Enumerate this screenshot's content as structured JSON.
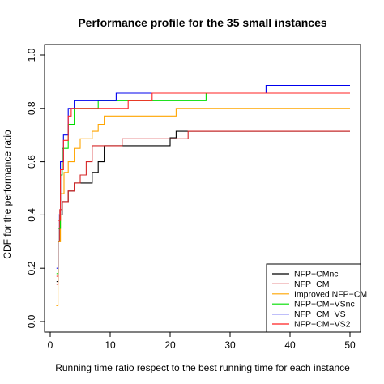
{
  "chart_data": {
    "type": "line",
    "step": true,
    "title": "Performance profile for the 35 small instances",
    "xlabel": "Running time ratio respect to the best running time for each instance",
    "ylabel": "CDF for the performance ratio",
    "xlim": [
      0,
      50
    ],
    "ylim": [
      0,
      1.0
    ],
    "xticks": [
      0,
      10,
      20,
      30,
      40,
      50
    ],
    "yticks": [
      0.0,
      0.2,
      0.4,
      0.6,
      0.8,
      1.0
    ],
    "ytick_labels": [
      "0.0",
      "0.2",
      "0.4",
      "0.6",
      "0.8",
      "1.0"
    ],
    "grid": false,
    "legend_position": "bottom-right",
    "series": [
      {
        "name": "NFP−CMnc",
        "color": "#000000",
        "points": [
          [
            1.05,
            0.15
          ],
          [
            1.3,
            0.3
          ],
          [
            1.6,
            0.4
          ],
          [
            2,
            0.45
          ],
          [
            3,
            0.49
          ],
          [
            4,
            0.52
          ],
          [
            5,
            0.52
          ],
          [
            6.5,
            0.52
          ],
          [
            7,
            0.56
          ],
          [
            8,
            0.6
          ],
          [
            9,
            0.66
          ],
          [
            15,
            0.66
          ],
          [
            19,
            0.66
          ],
          [
            20,
            0.69
          ],
          [
            21,
            0.714
          ],
          [
            25,
            0.714
          ],
          [
            50,
            0.714
          ]
        ]
      },
      {
        "name": "NFP−CM",
        "color": "#d62728",
        "points": [
          [
            1.05,
            0.14
          ],
          [
            1.3,
            0.3
          ],
          [
            1.6,
            0.42
          ],
          [
            2,
            0.45
          ],
          [
            3,
            0.49
          ],
          [
            4,
            0.52
          ],
          [
            5,
            0.55
          ],
          [
            6,
            0.6
          ],
          [
            7,
            0.66
          ],
          [
            11,
            0.66
          ],
          [
            12,
            0.686
          ],
          [
            22,
            0.686
          ],
          [
            23,
            0.714
          ],
          [
            50,
            0.714
          ]
        ]
      },
      {
        "name": "Improved NFP−CM",
        "color": "#ffa500",
        "points": [
          [
            1.0,
            0.06
          ],
          [
            1.3,
            0.3
          ],
          [
            1.7,
            0.48
          ],
          [
            2.3,
            0.56
          ],
          [
            3,
            0.6
          ],
          [
            4,
            0.65
          ],
          [
            5,
            0.686
          ],
          [
            7,
            0.714
          ],
          [
            8,
            0.74
          ],
          [
            9,
            0.771
          ],
          [
            20,
            0.771
          ],
          [
            21,
            0.8
          ],
          [
            50,
            0.8
          ]
        ]
      },
      {
        "name": "NFP−CM−VSnc",
        "color": "#00dd00",
        "points": [
          [
            1.05,
            0.18
          ],
          [
            1.3,
            0.35
          ],
          [
            1.7,
            0.55
          ],
          [
            2,
            0.65
          ],
          [
            3,
            0.74
          ],
          [
            4,
            0.8
          ],
          [
            7,
            0.8
          ],
          [
            8,
            0.829
          ],
          [
            25,
            0.829
          ],
          [
            26,
            0.857
          ],
          [
            50,
            0.857
          ]
        ]
      },
      {
        "name": "NFP−CM−VS",
        "color": "#0000ee",
        "points": [
          [
            1.05,
            0.2
          ],
          [
            1.3,
            0.4
          ],
          [
            1.7,
            0.6
          ],
          [
            2.2,
            0.7
          ],
          [
            3,
            0.8
          ],
          [
            4,
            0.829
          ],
          [
            10,
            0.829
          ],
          [
            11,
            0.857
          ],
          [
            35,
            0.857
          ],
          [
            36,
            0.886
          ],
          [
            50,
            0.886
          ]
        ]
      },
      {
        "name": "NFP−CM−VS2",
        "color": "#ff2222",
        "points": [
          [
            1.05,
            0.17
          ],
          [
            1.3,
            0.38
          ],
          [
            1.7,
            0.57
          ],
          [
            2.2,
            0.68
          ],
          [
            3,
            0.771
          ],
          [
            3.5,
            0.8
          ],
          [
            12,
            0.8
          ],
          [
            13,
            0.829
          ],
          [
            16,
            0.829
          ],
          [
            17,
            0.857
          ],
          [
            50,
            0.857
          ]
        ]
      }
    ]
  }
}
